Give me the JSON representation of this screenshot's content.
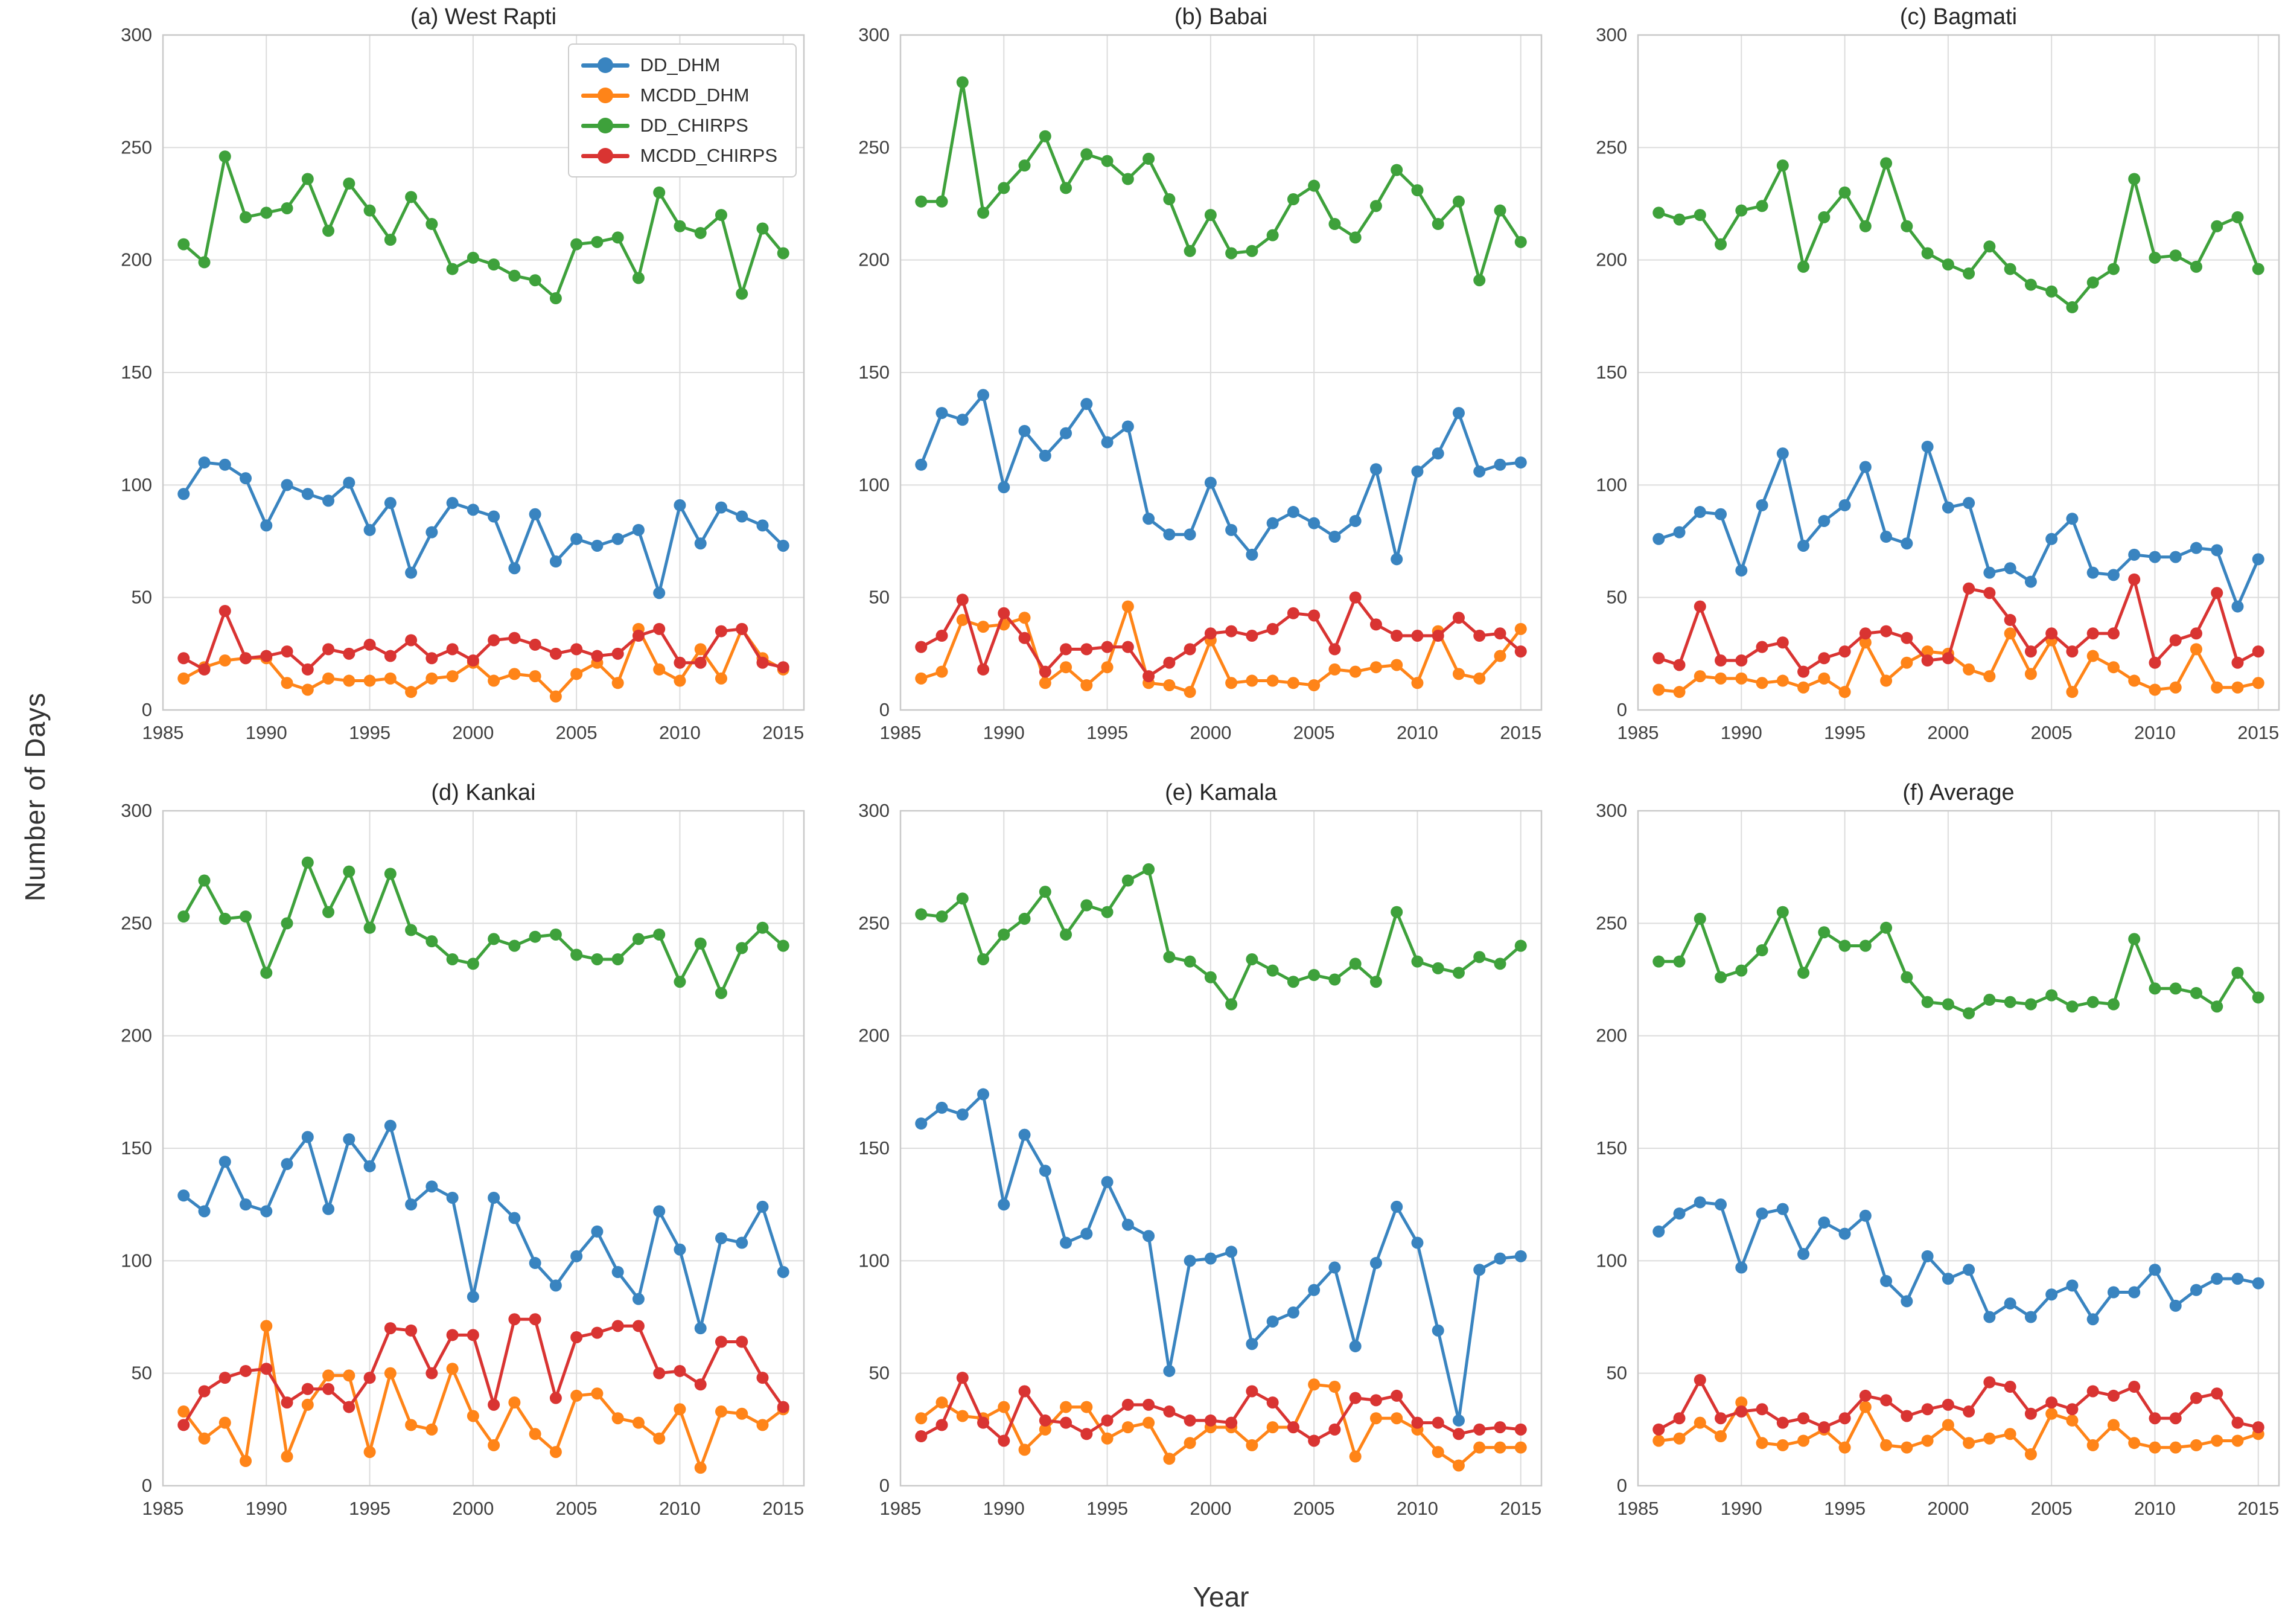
{
  "figure": {
    "ylabel": "Number of Days",
    "xlabel": "Year"
  },
  "legend": {
    "items": [
      {
        "label": "DD_DHM",
        "color": "#3984C0"
      },
      {
        "label": "MCDD_DHM",
        "color": "#FF8418"
      },
      {
        "label": "DD_CHIRPS",
        "color": "#3EA13B"
      },
      {
        "label": "MCDD_CHIRPS",
        "color": "#D93432"
      }
    ]
  },
  "axes": {
    "ylim": [
      0,
      300
    ],
    "yticks": [
      0,
      50,
      100,
      150,
      200,
      250,
      300
    ],
    "xlim": [
      1985,
      2016
    ],
    "xticks": [
      1985,
      1990,
      1995,
      2000,
      2005,
      2010,
      2015
    ],
    "grid": true,
    "grid_color": "#dcdcdc",
    "spine_color": "#c9c9c9",
    "tick_color": "#3f3f3f",
    "legend_position": "upper-right of panel (a)"
  },
  "years": [
    1986,
    1987,
    1988,
    1989,
    1990,
    1991,
    1992,
    1993,
    1994,
    1995,
    1996,
    1997,
    1998,
    1999,
    2000,
    2001,
    2002,
    2003,
    2004,
    2005,
    2006,
    2007,
    2008,
    2009,
    2010,
    2011,
    2012,
    2013,
    2014,
    2015
  ],
  "chart_data": [
    {
      "type": "line",
      "title": "(a) West Rapti",
      "xlabel": "",
      "ylabel": "",
      "series": [
        {
          "name": "DD_DHM",
          "color": "#3984C0",
          "values": [
            96,
            110,
            109,
            103,
            82,
            100,
            96,
            93,
            101,
            80,
            92,
            61,
            79,
            92,
            89,
            86,
            63,
            87,
            66,
            76,
            73,
            76,
            80,
            52,
            91,
            74,
            90,
            86,
            82,
            73
          ]
        },
        {
          "name": "MCDD_DHM",
          "color": "#FF8418",
          "values": [
            14,
            19,
            22,
            23,
            23,
            12,
            9,
            14,
            13,
            13,
            14,
            8,
            14,
            15,
            21,
            13,
            16,
            15,
            6,
            16,
            21,
            12,
            36,
            18,
            13,
            27,
            14,
            36,
            23,
            18
          ]
        },
        {
          "name": "DD_CHIRPS",
          "color": "#3EA13B",
          "values": [
            207,
            199,
            246,
            219,
            221,
            223,
            236,
            213,
            234,
            222,
            209,
            228,
            216,
            196,
            201,
            198,
            193,
            191,
            183,
            207,
            208,
            210,
            192,
            230,
            215,
            212,
            220,
            185,
            214,
            203
          ]
        },
        {
          "name": "MCDD_CHIRPS",
          "color": "#D93432",
          "values": [
            23,
            18,
            44,
            23,
            24,
            26,
            18,
            27,
            25,
            29,
            24,
            31,
            23,
            27,
            22,
            31,
            32,
            29,
            25,
            27,
            24,
            25,
            33,
            36,
            21,
            21,
            35,
            36,
            21,
            19
          ]
        }
      ]
    },
    {
      "type": "line",
      "title": "(b) Babai",
      "xlabel": "",
      "ylabel": "",
      "series": [
        {
          "name": "DD_DHM",
          "color": "#3984C0",
          "values": [
            109,
            132,
            129,
            140,
            99,
            124,
            113,
            123,
            136,
            119,
            126,
            85,
            78,
            78,
            101,
            80,
            69,
            83,
            88,
            83,
            77,
            84,
            107,
            67,
            106,
            114,
            132,
            106,
            109,
            110
          ]
        },
        {
          "name": "MCDD_DHM",
          "color": "#FF8418",
          "values": [
            14,
            17,
            40,
            37,
            38,
            41,
            12,
            19,
            11,
            19,
            46,
            12,
            11,
            8,
            31,
            12,
            13,
            13,
            12,
            11,
            18,
            17,
            19,
            20,
            12,
            35,
            16,
            14,
            24,
            36
          ]
        },
        {
          "name": "DD_CHIRPS",
          "color": "#3EA13B",
          "values": [
            226,
            226,
            279,
            221,
            232,
            242,
            255,
            232,
            247,
            244,
            236,
            245,
            227,
            204,
            220,
            203,
            204,
            211,
            227,
            233,
            216,
            210,
            224,
            240,
            231,
            216,
            226,
            191,
            222,
            208
          ]
        },
        {
          "name": "MCDD_CHIRPS",
          "color": "#D93432",
          "values": [
            28,
            33,
            49,
            18,
            43,
            32,
            17,
            27,
            27,
            28,
            28,
            15,
            21,
            27,
            34,
            35,
            33,
            36,
            43,
            42,
            27,
            50,
            38,
            33,
            33,
            33,
            41,
            33,
            34,
            26
          ]
        }
      ]
    },
    {
      "type": "line",
      "title": "(c) Bagmati",
      "xlabel": "",
      "ylabel": "",
      "series": [
        {
          "name": "DD_DHM",
          "color": "#3984C0",
          "values": [
            76,
            79,
            88,
            87,
            62,
            91,
            114,
            73,
            84,
            91,
            108,
            77,
            74,
            117,
            90,
            92,
            61,
            63,
            57,
            76,
            85,
            61,
            60,
            69,
            68,
            68,
            72,
            71,
            46,
            67
          ]
        },
        {
          "name": "MCDD_DHM",
          "color": "#FF8418",
          "values": [
            9,
            8,
            15,
            14,
            14,
            12,
            13,
            10,
            14,
            8,
            30,
            13,
            21,
            26,
            25,
            18,
            15,
            34,
            16,
            31,
            8,
            24,
            19,
            13,
            9,
            10,
            27,
            10,
            10,
            12
          ]
        },
        {
          "name": "DD_CHIRPS",
          "color": "#3EA13B",
          "values": [
            221,
            218,
            220,
            207,
            222,
            224,
            242,
            197,
            219,
            230,
            215,
            243,
            215,
            203,
            198,
            194,
            206,
            196,
            189,
            186,
            179,
            190,
            196,
            236,
            201,
            202,
            197,
            215,
            219,
            196
          ]
        },
        {
          "name": "MCDD_CHIRPS",
          "color": "#D93432",
          "values": [
            23,
            20,
            46,
            22,
            22,
            28,
            30,
            17,
            23,
            26,
            34,
            35,
            32,
            22,
            23,
            54,
            52,
            40,
            26,
            34,
            26,
            34,
            34,
            58,
            21,
            31,
            34,
            52,
            21,
            26
          ]
        }
      ]
    },
    {
      "type": "line",
      "title": "(d) Kankai",
      "xlabel": "",
      "ylabel": "",
      "series": [
        {
          "name": "DD_DHM",
          "color": "#3984C0",
          "values": [
            129,
            122,
            144,
            125,
            122,
            143,
            155,
            123,
            154,
            142,
            160,
            125,
            133,
            128,
            84,
            128,
            119,
            99,
            89,
            102,
            113,
            95,
            83,
            122,
            105,
            70,
            110,
            108,
            124,
            95
          ]
        },
        {
          "name": "MCDD_DHM",
          "color": "#FF8418",
          "values": [
            33,
            21,
            28,
            11,
            71,
            13,
            36,
            49,
            49,
            15,
            50,
            27,
            25,
            52,
            31,
            18,
            37,
            23,
            15,
            40,
            41,
            30,
            28,
            21,
            34,
            8,
            33,
            32,
            27,
            34
          ]
        },
        {
          "name": "DD_CHIRPS",
          "color": "#3EA13B",
          "values": [
            253,
            269,
            252,
            253,
            228,
            250,
            277,
            255,
            273,
            248,
            272,
            247,
            242,
            234,
            232,
            243,
            240,
            244,
            245,
            236,
            234,
            234,
            243,
            245,
            224,
            241,
            219,
            239,
            248,
            240
          ]
        },
        {
          "name": "MCDD_CHIRPS",
          "color": "#D93432",
          "values": [
            27,
            42,
            48,
            51,
            52,
            37,
            43,
            43,
            35,
            48,
            70,
            69,
            50,
            67,
            67,
            36,
            74,
            74,
            39,
            66,
            68,
            71,
            71,
            50,
            51,
            45,
            64,
            64,
            48,
            35
          ]
        }
      ]
    },
    {
      "type": "line",
      "title": "(e) Kamala",
      "xlabel": "",
      "ylabel": "",
      "series": [
        {
          "name": "DD_DHM",
          "color": "#3984C0",
          "values": [
            161,
            168,
            165,
            174,
            125,
            156,
            140,
            108,
            112,
            135,
            116,
            111,
            51,
            100,
            101,
            104,
            63,
            73,
            77,
            87,
            97,
            62,
            99,
            124,
            108,
            69,
            29,
            96,
            101,
            102
          ]
        },
        {
          "name": "MCDD_DHM",
          "color": "#FF8418",
          "values": [
            30,
            37,
            31,
            30,
            35,
            16,
            25,
            35,
            35,
            21,
            26,
            28,
            12,
            19,
            26,
            26,
            18,
            26,
            26,
            45,
            44,
            13,
            30,
            30,
            25,
            15,
            9,
            17,
            17,
            17
          ]
        },
        {
          "name": "DD_CHIRPS",
          "color": "#3EA13B",
          "values": [
            254,
            253,
            261,
            234,
            245,
            252,
            264,
            245,
            258,
            255,
            269,
            274,
            235,
            233,
            226,
            214,
            234,
            229,
            224,
            227,
            225,
            232,
            224,
            255,
            233,
            230,
            228,
            235,
            232,
            240
          ]
        },
        {
          "name": "MCDD_CHIRPS",
          "color": "#D93432",
          "values": [
            22,
            27,
            48,
            28,
            20,
            42,
            29,
            28,
            23,
            29,
            36,
            36,
            33,
            29,
            29,
            28,
            42,
            37,
            26,
            20,
            25,
            39,
            38,
            40,
            28,
            28,
            23,
            25,
            26,
            25
          ]
        }
      ]
    },
    {
      "type": "line",
      "title": "(f) Average",
      "xlabel": "",
      "ylabel": "",
      "series": [
        {
          "name": "DD_DHM",
          "color": "#3984C0",
          "values": [
            113,
            121,
            126,
            125,
            97,
            121,
            123,
            103,
            117,
            112,
            120,
            91,
            82,
            102,
            92,
            96,
            75,
            81,
            75,
            85,
            89,
            74,
            86,
            86,
            96,
            80,
            87,
            92,
            92,
            90
          ]
        },
        {
          "name": "MCDD_DHM",
          "color": "#FF8418",
          "values": [
            20,
            21,
            28,
            22,
            37,
            19,
            18,
            20,
            25,
            17,
            35,
            18,
            17,
            20,
            27,
            19,
            21,
            23,
            14,
            32,
            29,
            18,
            27,
            19,
            17,
            17,
            18,
            20,
            20,
            23
          ]
        },
        {
          "name": "DD_CHIRPS",
          "color": "#3EA13B",
          "values": [
            233,
            233,
            252,
            226,
            229,
            238,
            255,
            228,
            246,
            240,
            240,
            248,
            226,
            215,
            214,
            210,
            216,
            215,
            214,
            218,
            213,
            215,
            214,
            243,
            221,
            221,
            219,
            213,
            228,
            217
          ]
        },
        {
          "name": "MCDD_CHIRPS",
          "color": "#D93432",
          "values": [
            25,
            30,
            47,
            30,
            33,
            34,
            28,
            30,
            26,
            30,
            40,
            38,
            31,
            34,
            36,
            33,
            46,
            44,
            32,
            37,
            34,
            42,
            40,
            44,
            30,
            30,
            39,
            41,
            28,
            26
          ]
        }
      ]
    }
  ]
}
